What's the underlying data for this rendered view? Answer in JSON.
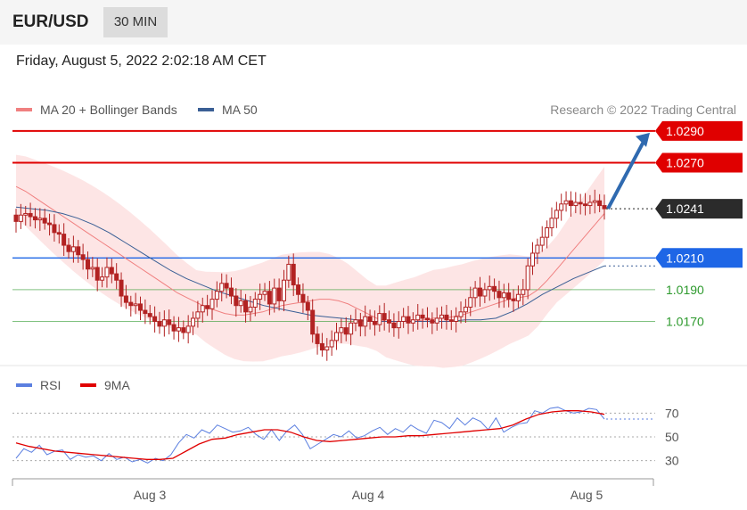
{
  "header": {
    "symbol": "EUR/USD",
    "timeframe": "30 MIN"
  },
  "timestamp": "Friday, August 5, 2022 2:02:18 AM CET",
  "legend": {
    "ma20": "MA 20 + Bollinger Bands",
    "ma50": "MA 50",
    "credit": "Research © 2022 Trading Central"
  },
  "rsi_legend": {
    "rsi": "RSI",
    "ma9": "9MA"
  },
  "colors": {
    "resistance": "#e00000",
    "support_blue": "#1e66e6",
    "support_green": "#2e9a2e",
    "current": "#2b2b2b",
    "candle": "#b22222",
    "band_fill": "#fde0e0",
    "ma20": "#f08080",
    "ma50": "#3a5f95",
    "arrow": "#2f6ab0",
    "rsi": "#5b7fe0",
    "rsi_ma": "#e00000"
  },
  "chart_data": [
    {
      "type": "candlestick",
      "title": "EUR/USD 30 MIN",
      "x_tick_labels": [
        "Aug 3",
        "Aug 4",
        "Aug 5"
      ],
      "ylim": [
        1.0145,
        1.0295
      ],
      "levels": [
        {
          "label": "1.0290",
          "value": 1.029,
          "kind": "resistance"
        },
        {
          "label": "1.0270",
          "value": 1.027,
          "kind": "resistance"
        },
        {
          "label": "1.0241",
          "value": 1.0241,
          "kind": "current"
        },
        {
          "label": "1.0210",
          "value": 1.021,
          "kind": "support_major"
        },
        {
          "label": "1.0190",
          "value": 1.019,
          "kind": "support"
        },
        {
          "label": "1.0170",
          "value": 1.017,
          "kind": "support"
        }
      ],
      "close_series": [
        1.0233,
        1.0237,
        1.0238,
        1.0236,
        1.0234,
        1.0235,
        1.0232,
        1.0231,
        1.0226,
        1.0225,
        1.0218,
        1.0214,
        1.0217,
        1.0212,
        1.0209,
        1.0203,
        1.0204,
        1.0196,
        1.0198,
        1.0204,
        1.02,
        1.0196,
        1.0186,
        1.0182,
        1.018,
        1.0181,
        1.0177,
        1.0175,
        1.0173,
        1.017,
        1.0167,
        1.0171,
        1.0168,
        1.0164,
        1.0166,
        1.0163,
        1.0167,
        1.0172,
        1.0176,
        1.018,
        1.0178,
        1.0184,
        1.0189,
        1.0194,
        1.0191,
        1.0186,
        1.018,
        1.0183,
        1.0176,
        1.0179,
        1.0184,
        1.0187,
        1.0189,
        1.0181,
        1.0191,
        1.0183,
        1.0196,
        1.0206,
        1.0193,
        1.0187,
        1.0182,
        1.0177,
        1.0162,
        1.0156,
        1.0152,
        1.0154,
        1.0158,
        1.0163,
        1.0166,
        1.0162,
        1.0169,
        1.0171,
        1.0167,
        1.0173,
        1.017,
        1.0168,
        1.0175,
        1.0171,
        1.0169,
        1.0166,
        1.017,
        1.0173,
        1.0169,
        1.0171,
        1.0174,
        1.0172,
        1.0171,
        1.0169,
        1.0172,
        1.0174,
        1.0171,
        1.017,
        1.0173,
        1.0176,
        1.0179,
        1.0185,
        1.0191,
        1.0186,
        1.019,
        1.0192,
        1.0189,
        1.0185,
        1.0188,
        1.0184,
        1.0183,
        1.0187,
        1.019,
        1.0205,
        1.0213,
        1.0218,
        1.0223,
        1.0229,
        1.0235,
        1.024,
        1.0244,
        1.0246,
        1.0243,
        1.0245,
        1.0244,
        1.0243,
        1.0245,
        1.0246,
        1.0243,
        1.0241
      ],
      "ma20_series": [
        1.0255,
        1.0252,
        1.0248,
        1.0244,
        1.024,
        1.0236,
        1.0232,
        1.0228,
        1.0224,
        1.022,
        1.0216,
        1.0212,
        1.0208,
        1.0204,
        1.02,
        1.0196,
        1.0192,
        1.0188,
        1.0185,
        1.0182,
        1.0179,
        1.0177,
        1.0175,
        1.0174,
        1.0174,
        1.0175,
        1.0176,
        1.0178,
        1.018,
        1.0181,
        1.0182,
        1.0183,
        1.0184,
        1.0184,
        1.0183,
        1.0181,
        1.0178,
        1.0175,
        1.0172,
        1.017,
        1.017,
        1.017,
        1.017,
        1.0171,
        1.0172,
        1.0172,
        1.0173,
        1.0174,
        1.0176,
        1.0178,
        1.018,
        1.0182,
        1.0184,
        1.0185,
        1.0186,
        1.019,
        1.0196,
        1.0203,
        1.021,
        1.0217,
        1.0224,
        1.0231,
        1.0238
      ],
      "ma50_series": [
        1.0242,
        1.0241,
        1.024,
        1.0238,
        1.0235,
        1.0231,
        1.0226,
        1.022,
        1.0214,
        1.0208,
        1.0202,
        1.0197,
        1.0193,
        1.0189,
        1.0186,
        1.0183,
        1.018,
        1.0178,
        1.0176,
        1.0174,
        1.0173,
        1.0172,
        1.0171,
        1.017,
        1.017,
        1.017,
        1.017,
        1.017,
        1.017,
        1.0171,
        1.0171,
        1.0172,
        1.0176,
        1.0181,
        1.0187,
        1.0192,
        1.0197,
        1.0201,
        1.0205
      ],
      "projection": {
        "from": 1.0241,
        "to": 1.029
      }
    },
    {
      "type": "line",
      "title": "RSI",
      "y_tick_labels": [
        "70",
        "50",
        "30"
      ],
      "ylim": [
        20,
        80
      ],
      "series": [
        {
          "name": "RSI",
          "values": [
            32,
            40,
            37,
            43,
            35,
            38,
            39,
            31,
            35,
            33,
            34,
            30,
            36,
            31,
            33,
            29,
            31,
            28,
            32,
            30,
            35,
            45,
            52,
            49,
            56,
            53,
            60,
            57,
            54,
            55,
            58,
            52,
            48,
            56,
            47,
            55,
            60,
            52,
            40,
            44,
            48,
            52,
            50,
            55,
            49,
            51,
            55,
            58,
            52,
            57,
            54,
            60,
            56,
            53,
            64,
            62,
            57,
            66,
            60,
            66,
            63,
            56,
            66,
            54,
            58,
            61,
            62,
            72,
            70,
            74,
            75,
            72,
            70,
            71,
            74,
            73,
            65
          ]
        },
        {
          "name": "9MA",
          "values": [
            45,
            42,
            40,
            38,
            37,
            36,
            35,
            34,
            33,
            32,
            31,
            31,
            32,
            38,
            44,
            48,
            49,
            52,
            54,
            56,
            56,
            54,
            50,
            47,
            46,
            47,
            48,
            49,
            50,
            50,
            51,
            51,
            52,
            53,
            54,
            55,
            56,
            57,
            60,
            65,
            69,
            71,
            72,
            72,
            71,
            69
          ]
        }
      ]
    }
  ]
}
